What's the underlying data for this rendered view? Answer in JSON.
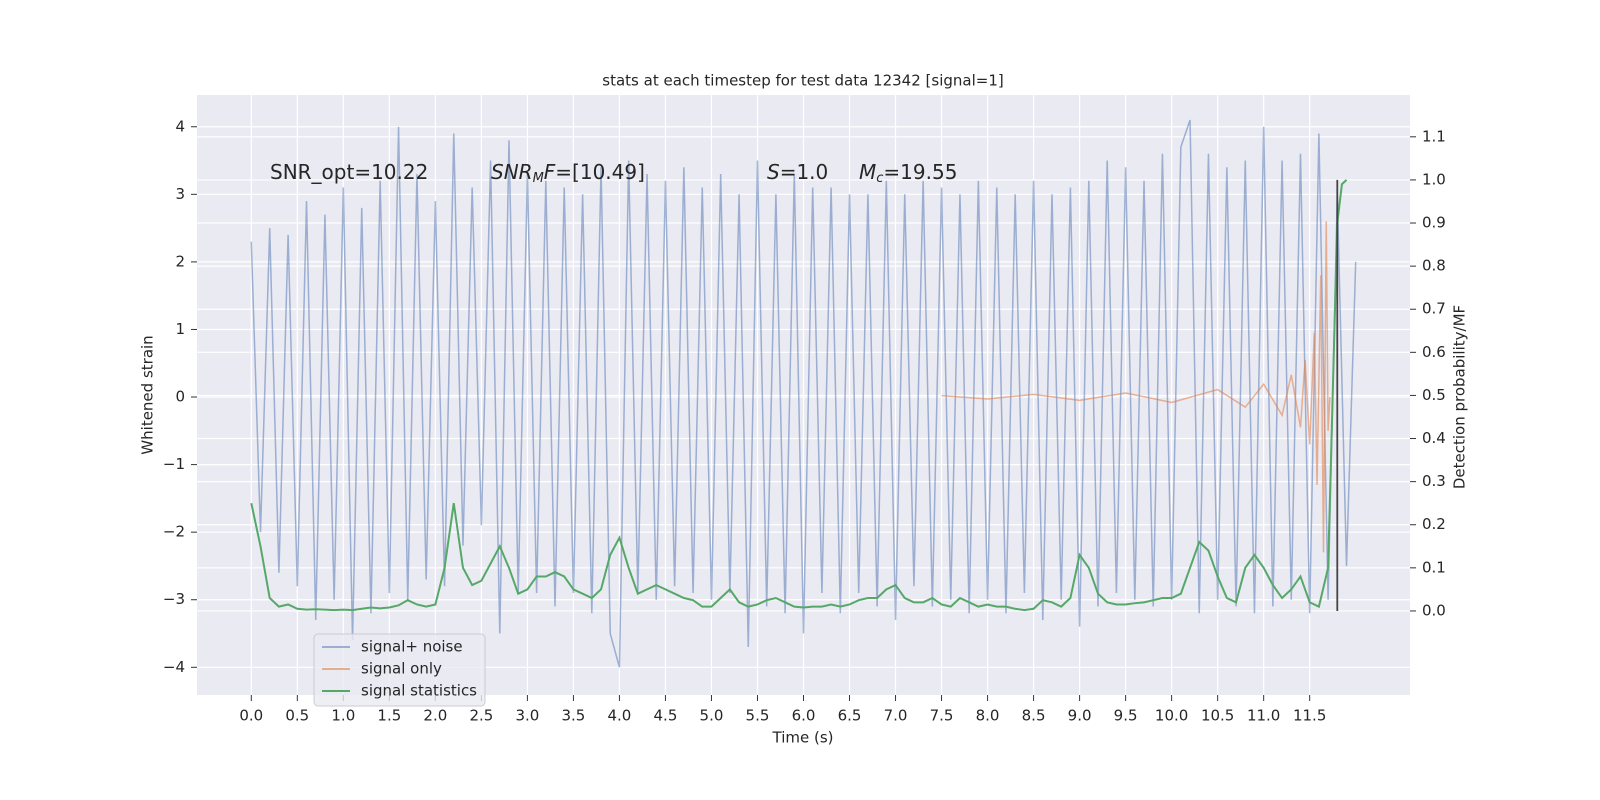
{
  "chart_data": {
    "type": "line",
    "title": "stats at each timestep for test data 12342 [signal=1]",
    "xlabel": "Time (s)",
    "ylabel": "Whitened strain",
    "y2label": "Detection probability/MF",
    "background": "#eaeaf2",
    "grid": true,
    "legend": "lower left",
    "xlim": [
      -0.59,
      12.59
    ],
    "ylim": [
      -4.41,
      4.47
    ],
    "y2lim": [
      -0.195,
      1.197
    ],
    "xticks": [
      {
        "value": 0,
        "label": "0.0"
      },
      {
        "value": 0.5,
        "label": "0.5"
      },
      {
        "value": 1,
        "label": "1.0"
      },
      {
        "value": 1.5,
        "label": "1.5"
      },
      {
        "value": 2,
        "label": "2.0"
      },
      {
        "value": 2.5,
        "label": "2.5"
      },
      {
        "value": 3,
        "label": "3.0"
      },
      {
        "value": 3.5,
        "label": "3.5"
      },
      {
        "value": 4,
        "label": "4.0"
      },
      {
        "value": 4.5,
        "label": "4.5"
      },
      {
        "value": 5,
        "label": "5.0"
      },
      {
        "value": 5.5,
        "label": "5.5"
      },
      {
        "value": 6,
        "label": "6.0"
      },
      {
        "value": 6.5,
        "label": "6.5"
      },
      {
        "value": 7,
        "label": "7.0"
      },
      {
        "value": 7.5,
        "label": "7.5"
      },
      {
        "value": 8,
        "label": "8.0"
      },
      {
        "value": 8.5,
        "label": "8.5"
      },
      {
        "value": 9,
        "label": "9.0"
      },
      {
        "value": 9.5,
        "label": "9.5"
      },
      {
        "value": 10,
        "label": "10.0"
      },
      {
        "value": 10.5,
        "label": "10.5"
      },
      {
        "value": 11,
        "label": "11.0"
      },
      {
        "value": 11.5,
        "label": "11.5"
      }
    ],
    "yticks": [
      {
        "value": -4,
        "label": "−4"
      },
      {
        "value": -3,
        "label": "−3"
      },
      {
        "value": -2,
        "label": "−2"
      },
      {
        "value": -1,
        "label": "−1"
      },
      0,
      1,
      2,
      3,
      4
    ],
    "y2ticks": [
      {
        "value": 0,
        "label": "0.0"
      },
      {
        "value": 0.1,
        "label": "0.1"
      },
      {
        "value": 0.2,
        "label": "0.2"
      },
      {
        "value": 0.3,
        "label": "0.3"
      },
      {
        "value": 0.4,
        "label": "0.4"
      },
      {
        "value": 0.5,
        "label": "0.5"
      },
      {
        "value": 0.6,
        "label": "0.6"
      },
      {
        "value": 0.7,
        "label": "0.7"
      },
      {
        "value": 0.8,
        "label": "0.8"
      },
      {
        "value": 0.9,
        "label": "0.9"
      },
      {
        "value": 1,
        "label": "1.0"
      },
      {
        "value": 1.1,
        "label": "1.1"
      }
    ],
    "annotations": [
      [
        {
          "text": "SNR_opt=10.22"
        }
      ],
      [
        {
          "text": "SNR",
          "italic": true
        },
        {
          "text": "M",
          "italic": true,
          "sub": true
        },
        {
          "text": "F",
          "italic": true
        },
        {
          "text": "=[10.49]"
        }
      ],
      [
        {
          "text": "S",
          "italic": true
        },
        {
          "text": "=1.0"
        }
      ],
      [
        {
          "text": "M",
          "italic": true
        },
        {
          "text": "c",
          "italic": true,
          "sub": true
        },
        {
          "text": "=19.55"
        }
      ]
    ],
    "vline": {
      "x": 11.8,
      "y2": [
        0,
        1.0
      ],
      "color": "#444444"
    },
    "series": [
      {
        "name": "signal+ noise",
        "color": "#4c72b0",
        "opacity": 0.5,
        "x": [
          0,
          0.1,
          0.2,
          0.3,
          0.4,
          0.5,
          0.6,
          0.7,
          0.8,
          0.9,
          1,
          1.1,
          1.2,
          1.3,
          1.4,
          1.5,
          1.6,
          1.7,
          1.8,
          1.9,
          2,
          2.1,
          2.2,
          2.3,
          2.4,
          2.5,
          2.6,
          2.7,
          2.8,
          2.9,
          3,
          3.1,
          3.2,
          3.3,
          3.4,
          3.5,
          3.6,
          3.7,
          3.8,
          3.9,
          4,
          4.1,
          4.2,
          4.3,
          4.4,
          4.5,
          4.6,
          4.7,
          4.8,
          4.9,
          5,
          5.1,
          5.2,
          5.3,
          5.4,
          5.5,
          5.6,
          5.7,
          5.8,
          5.9,
          6,
          6.1,
          6.2,
          6.3,
          6.4,
          6.5,
          6.6,
          6.7,
          6.8,
          6.9,
          7,
          7.1,
          7.2,
          7.3,
          7.4,
          7.5,
          7.6,
          7.7,
          7.8,
          7.9,
          8,
          8.1,
          8.2,
          8.3,
          8.4,
          8.5,
          8.6,
          8.7,
          8.8,
          8.9,
          9,
          9.1,
          9.2,
          9.3,
          9.4,
          9.5,
          9.6,
          9.7,
          9.8,
          9.9,
          10,
          10.1,
          10.2,
          10.3,
          10.4,
          10.5,
          10.6,
          10.7,
          10.8,
          10.9,
          11,
          11.1,
          11.2,
          11.3,
          11.4,
          11.5,
          11.6,
          11.7,
          11.8,
          11.9,
          12
        ],
        "values": [
          2.3,
          -2.0,
          2.5,
          -2.6,
          2.4,
          -2.8,
          2.9,
          -3.3,
          2.7,
          -3.0,
          3.1,
          -3.6,
          2.8,
          -3.2,
          3.2,
          -2.9,
          4.0,
          -3.0,
          3.3,
          -2.7,
          2.9,
          -2.8,
          3.9,
          -2.2,
          3.1,
          -1.9,
          3.5,
          -3.5,
          3.8,
          -2.9,
          3.3,
          -2.9,
          3.2,
          -3.1,
          3.1,
          -2.9,
          3.0,
          -3.2,
          3.4,
          -3.5,
          -4.0,
          3.5,
          -2.9,
          3.3,
          -3.0,
          3.2,
          -2.8,
          3.4,
          -2.9,
          3.1,
          -3.0,
          3.3,
          -2.9,
          3.0,
          -3.7,
          3.5,
          -3.1,
          3.0,
          -3.2,
          3.3,
          -3.5,
          3.1,
          -2.9,
          3.1,
          -3.2,
          3.0,
          -2.9,
          3.0,
          -3.1,
          3.2,
          -3.3,
          3.0,
          -2.8,
          3.2,
          -3.1,
          3.1,
          -3.0,
          3.0,
          -3.2,
          3.2,
          -3.0,
          3.1,
          -3.2,
          3.0,
          -2.9,
          3.2,
          -3.3,
          3.0,
          -3.0,
          3.1,
          -3.4,
          3.2,
          -3.1,
          3.5,
          -2.9,
          3.4,
          -3.0,
          3.2,
          -3.1,
          3.6,
          -3.0,
          3.7,
          4.1,
          -3.2,
          3.6,
          -3.0,
          3.4,
          -3.1,
          3.5,
          -3.2,
          4.0,
          -3.1,
          3.5,
          -3.0,
          3.6,
          -3.2,
          3.9,
          -3.0,
          3.0,
          -2.5,
          2.0
        ]
      },
      {
        "name": "signal only",
        "color": "#dd8452",
        "opacity": 0.6,
        "x": [
          7.5,
          8,
          8.5,
          9,
          9.5,
          10,
          10.5,
          10.8,
          11,
          11.2,
          11.3,
          11.4,
          11.45,
          11.5,
          11.55,
          11.58,
          11.62,
          11.65,
          11.68,
          11.7,
          11.72
        ],
        "values": [
          0.02,
          -0.03,
          0.04,
          -0.05,
          0.06,
          -0.08,
          0.11,
          -0.15,
          0.19,
          -0.27,
          0.33,
          -0.45,
          0.55,
          -0.7,
          0.95,
          -1.3,
          1.8,
          -2.3,
          2.6,
          -0.5,
          0
        ]
      },
      {
        "name": "signal statistics",
        "color": "#55a868",
        "opacity": 1,
        "axis": "y2",
        "x": [
          0,
          0.1,
          0.2,
          0.3,
          0.4,
          0.5,
          0.6,
          0.7,
          0.8,
          0.9,
          1,
          1.1,
          1.2,
          1.3,
          1.4,
          1.5,
          1.6,
          1.7,
          1.8,
          1.9,
          2,
          2.1,
          2.2,
          2.3,
          2.4,
          2.5,
          2.6,
          2.7,
          2.8,
          2.9,
          3,
          3.1,
          3.2,
          3.3,
          3.4,
          3.5,
          3.6,
          3.7,
          3.8,
          3.9,
          4,
          4.1,
          4.2,
          4.3,
          4.4,
          4.5,
          4.6,
          4.7,
          4.8,
          4.9,
          5,
          5.1,
          5.2,
          5.3,
          5.4,
          5.5,
          5.6,
          5.7,
          5.8,
          5.9,
          6,
          6.1,
          6.2,
          6.3,
          6.4,
          6.5,
          6.6,
          6.7,
          6.8,
          6.9,
          7,
          7.1,
          7.2,
          7.3,
          7.4,
          7.5,
          7.6,
          7.7,
          7.8,
          7.9,
          8,
          8.1,
          8.2,
          8.3,
          8.4,
          8.5,
          8.6,
          8.7,
          8.8,
          8.9,
          9,
          9.1,
          9.2,
          9.3,
          9.4,
          9.5,
          9.6,
          9.7,
          9.8,
          9.9,
          10,
          10.1,
          10.2,
          10.3,
          10.4,
          10.5,
          10.6,
          10.7,
          10.8,
          10.9,
          11,
          11.1,
          11.2,
          11.3,
          11.4,
          11.5,
          11.6,
          11.7,
          11.75,
          11.8,
          11.85,
          11.9
        ],
        "values": [
          0.25,
          0.15,
          0.03,
          0.01,
          0.015,
          0.005,
          0.003,
          0.004,
          0.003,
          0.002,
          0.003,
          0.002,
          0.005,
          0.008,
          0.006,
          0.008,
          0.013,
          0.025,
          0.015,
          0.01,
          0.015,
          0.1,
          0.25,
          0.1,
          0.06,
          0.07,
          0.11,
          0.15,
          0.1,
          0.04,
          0.05,
          0.08,
          0.08,
          0.09,
          0.08,
          0.05,
          0.04,
          0.03,
          0.05,
          0.13,
          0.17,
          0.1,
          0.04,
          0.05,
          0.06,
          0.05,
          0.04,
          0.03,
          0.025,
          0.01,
          0.01,
          0.03,
          0.05,
          0.02,
          0.01,
          0.015,
          0.025,
          0.03,
          0.02,
          0.01,
          0.008,
          0.01,
          0.01,
          0.015,
          0.01,
          0.015,
          0.025,
          0.03,
          0.03,
          0.05,
          0.06,
          0.03,
          0.02,
          0.02,
          0.03,
          0.015,
          0.01,
          0.03,
          0.02,
          0.01,
          0.015,
          0.01,
          0.01,
          0.005,
          0.002,
          0.005,
          0.025,
          0.02,
          0.01,
          0.03,
          0.13,
          0.1,
          0.04,
          0.02,
          0.015,
          0.015,
          0.018,
          0.02,
          0.025,
          0.03,
          0.03,
          0.04,
          0.1,
          0.16,
          0.14,
          0.08,
          0.03,
          0.02,
          0.1,
          0.13,
          0.1,
          0.06,
          0.03,
          0.05,
          0.08,
          0.02,
          0.01,
          0.1,
          0.5,
          0.9,
          0.99,
          1.0
        ]
      }
    ]
  }
}
